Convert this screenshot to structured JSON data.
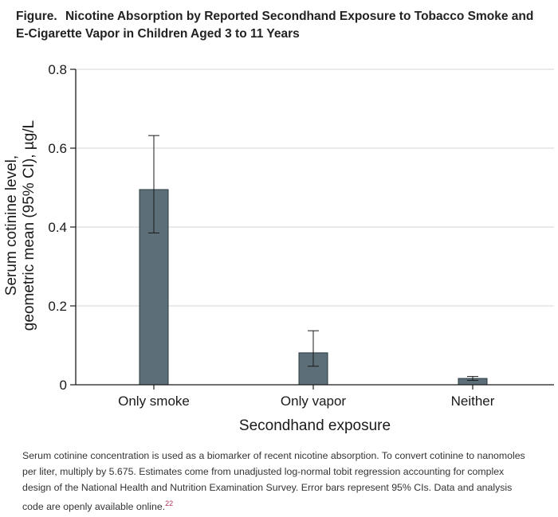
{
  "figure": {
    "label": "Figure.",
    "title": "Nicotine Absorption by Reported Secondhand Exposure to Tobacco Smoke and E-Cigarette Vapor in Children Aged 3 to 11 Years",
    "caption": "Serum cotinine concentration is used as a biomarker of recent nicotine absorption. To convert cotinine to nanomoles per liter, multiply by 5.675. Estimates come from unadjusted log-normal tobit regression accounting for complex design of the National Health and Nutrition Examination Survey. Error bars represent 95% CIs. Data and analysis code are openly available online.",
    "caption_ref": "22"
  },
  "chart_data": {
    "type": "bar",
    "categories": [
      "Only smoke",
      "Only vapor",
      "Neither"
    ],
    "values": [
      0.495,
      0.081,
      0.016
    ],
    "ci_low": [
      0.385,
      0.047,
      0.011
    ],
    "ci_high": [
      0.632,
      0.137,
      0.021
    ],
    "xlabel": "Secondhand exposure",
    "ylabel_line1": "Serum cotinine level,",
    "ylabel_line2": "geometric mean (95% CI), µg/L",
    "ylim": [
      0,
      0.8
    ],
    "yticks": [
      0,
      0.2,
      0.4,
      0.6,
      0.8
    ],
    "ytick_labels": [
      "0",
      "0.2",
      "0.4",
      "0.6",
      "0.8"
    ],
    "grid": true,
    "bar_color": "#5c6f78",
    "bar_edge": "#2b3a40"
  }
}
